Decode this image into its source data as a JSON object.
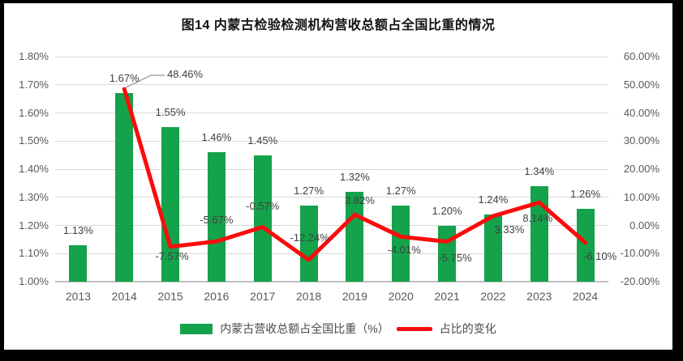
{
  "chart_data": {
    "type": "combo-bar-line",
    "title": "图14 内蒙古检验检测机构营收总额占全国比重的情况",
    "categories": [
      "2013",
      "2014",
      "2015",
      "2016",
      "2017",
      "2018",
      "2019",
      "2020",
      "2021",
      "2022",
      "2023",
      "2024"
    ],
    "series": [
      {
        "name": "内蒙古营收总额占全国比重（%）",
        "type": "bar",
        "axis": "left",
        "color": "#14A24B",
        "values": [
          1.13,
          1.67,
          1.55,
          1.46,
          1.45,
          1.27,
          1.32,
          1.27,
          1.2,
          1.24,
          1.34,
          1.26
        ],
        "labels": [
          "1.13%",
          "1.67%",
          "1.55%",
          "1.46%",
          "1.45%",
          "1.27%",
          "1.32%",
          "1.27%",
          "1.20%",
          "1.24%",
          "1.34%",
          "1.26%"
        ]
      },
      {
        "name": "占比的变化",
        "type": "line",
        "axis": "right",
        "color": "#FB0C0C",
        "values": [
          null,
          48.46,
          -7.57,
          -5.67,
          -0.57,
          -12.24,
          3.82,
          -4.01,
          -5.75,
          3.33,
          8.14,
          -6.1
        ],
        "labels": [
          "",
          "48.46%",
          "-7.57%",
          "-5.67%",
          "-0.57%",
          "-12.24%",
          "3.82%",
          "-4.01%",
          "-5.75%",
          "3.33%",
          "8.14%",
          "-6.10%"
        ]
      }
    ],
    "left_axis": {
      "min": 1.0,
      "max": 1.8,
      "step": 0.1,
      "ticks": [
        "1.80%",
        "1.70%",
        "1.60%",
        "1.50%",
        "1.40%",
        "1.30%",
        "1.20%",
        "1.10%",
        "1.00%"
      ]
    },
    "right_axis": {
      "min": -20,
      "max": 60,
      "step": 10,
      "ticks": [
        "60.00%",
        "50.00%",
        "40.00%",
        "30.00%",
        "20.00%",
        "10.00%",
        "0.00%",
        "-10.00%",
        "-20.00%"
      ]
    },
    "grid": true,
    "legend_position": "bottom",
    "colors": {
      "gridline": "#D9D9D9",
      "axis_line": "#BFBFBF",
      "tick_text": "#595959",
      "label_text": "#404040",
      "callout": "#A6A6A6",
      "background": "#FFFFFF",
      "frame": "#000000"
    }
  }
}
